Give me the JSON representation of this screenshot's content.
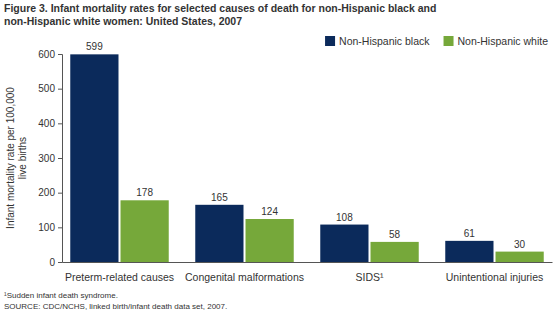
{
  "chart_data": {
    "type": "bar",
    "title": "Figure 3. Infant mortality rates for selected causes of death for non-Hispanic black and non-Hispanic white women: United States, 2007",
    "y_label": "Infant mortality rate per 100,000 live births",
    "categories": [
      "Preterm-related causes",
      "Congenital malformations",
      "SIDS¹",
      "Unintentional injuries"
    ],
    "series": [
      {
        "name": "Non-Hispanic black",
        "color": "#0b2a5b",
        "values": [
          599,
          165,
          108,
          61
        ]
      },
      {
        "name": "Non-Hispanic white",
        "color": "#76a83a",
        "values": [
          178,
          124,
          58,
          30
        ]
      }
    ],
    "ylim": [
      0,
      600
    ],
    "yticks": [
      0,
      100,
      200,
      300,
      400,
      500,
      600
    ],
    "grid": false,
    "legend": "top-right",
    "data_labels": true,
    "annotations": [
      "¹Sudden infant death syndrome.",
      "SOURCE: CDC/NCHS, linked birth/infant death data set, 2007."
    ]
  }
}
